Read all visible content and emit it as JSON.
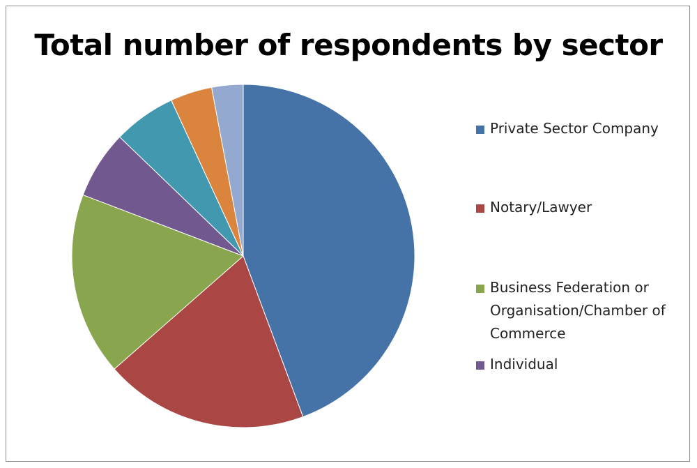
{
  "chart_data": {
    "type": "pie",
    "title": "Total number of respondents by sector",
    "slices": [
      {
        "label": "Private Sector Company",
        "value": 45,
        "color": "#4572A7",
        "in_legend": true
      },
      {
        "label": "Notary/Lawyer",
        "value": 19.5,
        "color": "#AA4643",
        "in_legend": true
      },
      {
        "label": "Business Federation or Organisation/Chamber of Commerce",
        "value": 17.5,
        "color": "#89A54E",
        "in_legend": true
      },
      {
        "label": "Individual",
        "value": 6.5,
        "color": "#71588F",
        "in_legend": true
      },
      {
        "label": "",
        "value": 6,
        "color": "#4198AF",
        "in_legend": false
      },
      {
        "label": "",
        "value": 4,
        "color": "#DB843D",
        "in_legend": false
      },
      {
        "label": "",
        "value": 3,
        "color": "#93A9CF",
        "in_legend": false
      }
    ],
    "legend_position": "right"
  }
}
